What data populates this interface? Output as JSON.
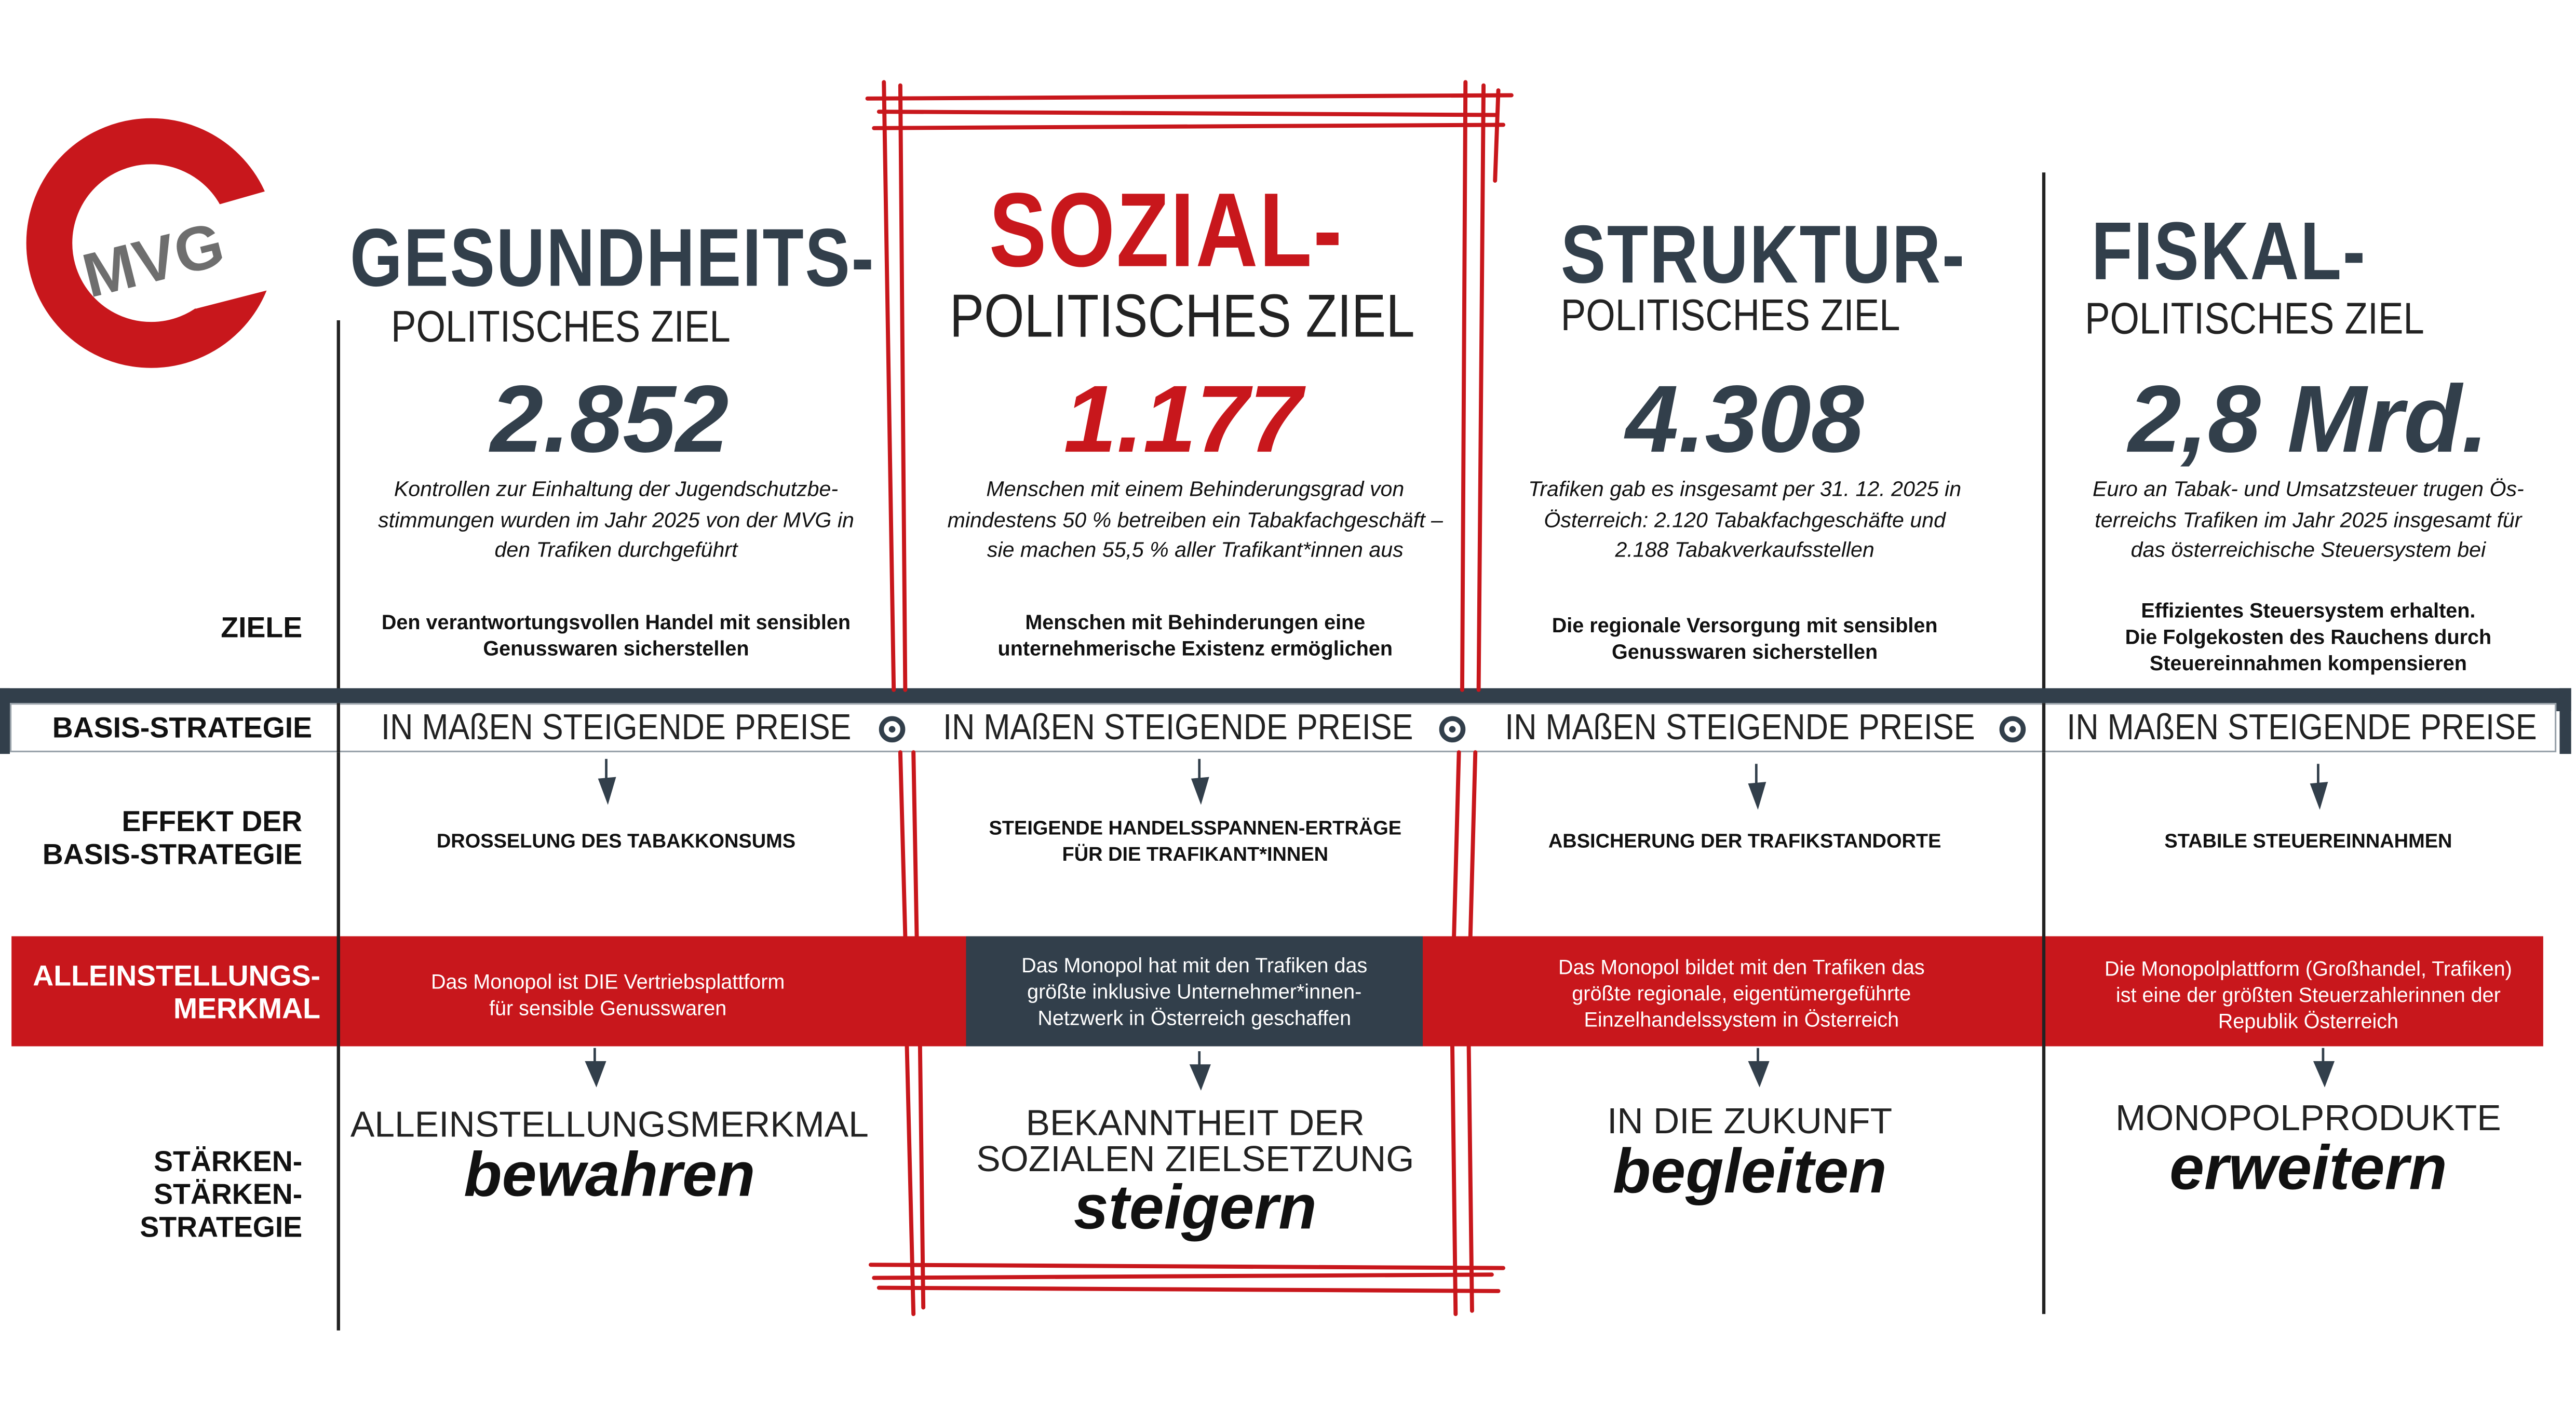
{
  "logo": {
    "text": "MVG"
  },
  "colors": {
    "red": "#c8171c",
    "dark": "#323f4b"
  },
  "row_labels": {
    "ziele": "ZIELE",
    "basis": "BASIS-STRATEGIE",
    "effekt_1": "EFFEKT DER",
    "effekt_2": "BASIS-STRATEGIE",
    "usp_1": "ALLEINSTELLUNGS-",
    "usp_2": "MERKMAL",
    "staerken_1": "STÄRKEN-",
    "staerken_2": "STÄRKEN-",
    "staerken_3": "STRATEGIE"
  },
  "columns": [
    {
      "title": "GESUNDHEITS-",
      "subtitle": "POLITISCHES ZIEL",
      "number": "2.852",
      "desc": [
        "Kontrollen zur Einhaltung der Jugendschutzbe-",
        "stimmungen wurden im Jahr 2025 von der MVG in",
        "den Trafiken durchgeführt"
      ],
      "goal": [
        "Den verantwortungsvollen Handel mit sensiblen",
        "Genusswaren sicherstellen"
      ],
      "strategy": "IN MAßEN STEIGENDE PREISE",
      "effect": [
        "DROSSELUNG DES TABAKKONSUMS"
      ],
      "usp": [
        "Das Monopol ist DIE Vertriebsplattform",
        "für sensible Genusswaren"
      ],
      "strength_head": [
        "ALLEINSTELLUNGSMERKMAL"
      ],
      "strength_verb": "bewahren"
    },
    {
      "title": "SOZIAL-",
      "subtitle": "POLITISCHES ZIEL",
      "number": "1.177",
      "desc": [
        "Menschen mit einem Behinderungsgrad von",
        "mindestens 50 % betreiben ein Tabakfachgeschäft –",
        "sie machen 55,5 % aller Trafikant*innen aus"
      ],
      "goal": [
        "Menschen mit Behinderungen eine",
        "unternehmerische Existenz ermöglichen"
      ],
      "strategy": "IN MAßEN STEIGENDE PREISE",
      "effect": [
        "STEIGENDE HANDELSSPANNEN-ERTRÄGE",
        "FÜR DIE TRAFIKANT*INNEN"
      ],
      "usp": [
        "Das Monopol hat mit den Trafiken das",
        "größte inklusive Unternehmer*innen-",
        "Netzwerk in Österreich geschaffen"
      ],
      "strength_head": [
        "BEKANNTHEIT DER",
        "SOZIALEN ZIELSETZUNG"
      ],
      "strength_verb": "steigern"
    },
    {
      "title": "STRUKTUR-",
      "subtitle": "POLITISCHES ZIEL",
      "number": "4.308",
      "desc": [
        "Trafiken gab es insgesamt per 31. 12. 2025 in",
        "Österreich: 2.120 Tabakfachgeschäfte und",
        "2.188 Tabakverkaufsstellen"
      ],
      "goal": [
        "Die regionale Versorgung mit sensiblen",
        "Genusswaren sicherstellen"
      ],
      "strategy": "IN MAßEN STEIGENDE PREISE",
      "effect": [
        "ABSICHERUNG DER TRAFIKSTANDORTE"
      ],
      "usp": [
        "Das Monopol bildet mit den Trafiken das",
        "größte regionale, eigentümergeführte",
        "Einzelhandelssystem in Österreich"
      ],
      "strength_head": [
        "IN DIE ZUKUNFT"
      ],
      "strength_verb": "begleiten"
    },
    {
      "title": "FISKAL-",
      "subtitle": "POLITISCHES ZIEL",
      "number": "2,8 Mrd.",
      "desc": [
        "Euro an Tabak- und Umsatzsteuer trugen Ös-",
        "terreichs Trafiken im Jahr 2025 insgesamt für",
        "das österreichische Steuersystem bei"
      ],
      "goal": [
        "Effizientes Steuersystem erhalten.",
        "Die Folgekosten des Rauchens durch",
        "Steuereinnahmen kompensieren"
      ],
      "strategy": "IN MAßEN STEIGENDE PREISE",
      "effect": [
        "STABILE STEUEREINNAHMEN"
      ],
      "usp": [
        "Die Monopolplattform (Großhandel, Trafiken)",
        "ist eine der größten Steuerzahlerinnen der",
        "Republik Österreich"
      ],
      "strength_head": [
        "MONOPOLPRODUKTE"
      ],
      "strength_verb": "erweitern"
    }
  ]
}
